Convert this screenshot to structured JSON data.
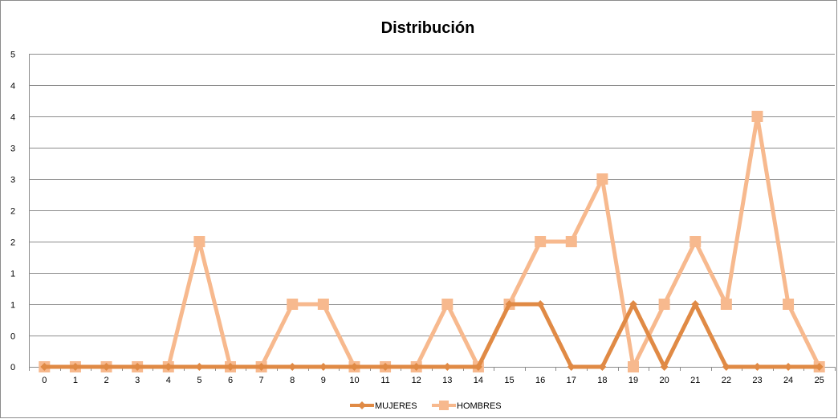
{
  "chart_data": {
    "type": "line",
    "title": "Distribución",
    "xlabel": "",
    "ylabel": "",
    "categories": [
      "0",
      "1",
      "2",
      "3",
      "4",
      "5",
      "6",
      "7",
      "8",
      "9",
      "10",
      "11",
      "12",
      "13",
      "14",
      "15",
      "16",
      "17",
      "18",
      "19",
      "20",
      "21",
      "22",
      "23",
      "24",
      "25"
    ],
    "y_tick_labels": [
      "0",
      "1",
      "1",
      "2",
      "2",
      "3",
      "3",
      "4",
      "4",
      "5"
    ],
    "series": [
      {
        "name": "MUJERES",
        "color": "#e08a45",
        "marker": "diamond",
        "values": [
          0,
          0,
          0,
          0,
          0,
          0,
          0,
          0,
          0,
          0,
          0,
          0,
          0,
          0,
          0,
          1,
          1,
          0,
          0,
          1,
          0,
          1,
          0,
          0,
          0,
          0
        ]
      },
      {
        "name": "HOMBRES",
        "color": "#f7b98e",
        "marker": "square",
        "values": [
          0,
          0,
          0,
          0,
          0,
          2,
          0,
          0,
          1,
          1,
          0,
          0,
          0,
          1,
          0,
          1,
          2,
          2,
          3,
          0,
          1,
          2,
          1,
          4,
          1,
          0
        ]
      }
    ],
    "ylim": [
      0,
      5
    ],
    "grid": true,
    "legend": "bottom"
  }
}
